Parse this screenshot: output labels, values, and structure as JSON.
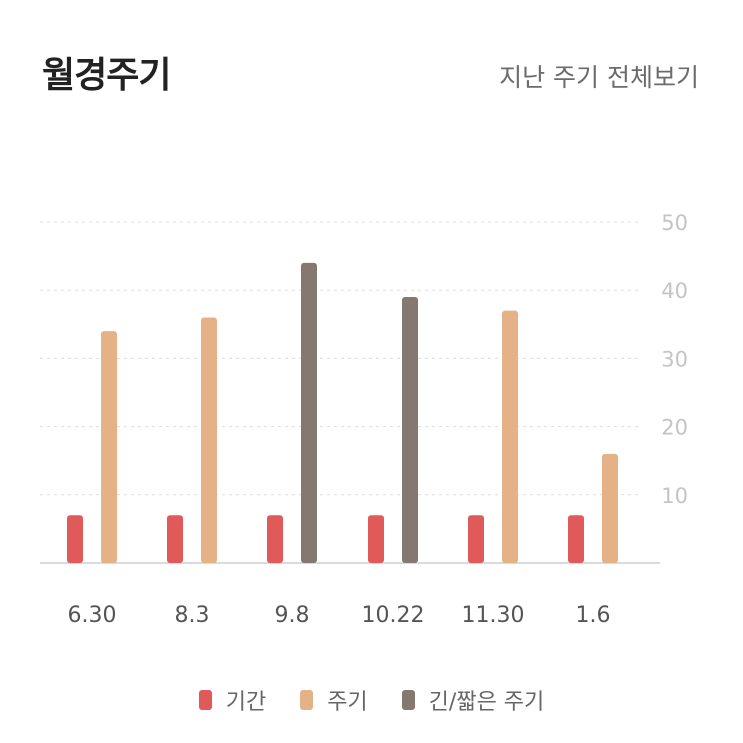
{
  "header": {
    "title": "월경주기",
    "view_all_label": "지난 주기 전체보기"
  },
  "colors": {
    "period": "#e05a5a",
    "cycle": "#e5b287",
    "long_short": "#857870",
    "grid": "#dddddd",
    "axis": "#cfcfcf",
    "tick_label": "#c4c4c4",
    "category_label": "#555555"
  },
  "chart_data": {
    "type": "bar",
    "categories": [
      "6.30",
      "8.3",
      "9.8",
      "10.22",
      "11.30",
      "1.6"
    ],
    "series": [
      {
        "name": "기간",
        "values": [
          7,
          7,
          7,
          7,
          7,
          7
        ]
      },
      {
        "name": "주기",
        "values": [
          34,
          36,
          null,
          null,
          37,
          16
        ]
      },
      {
        "name": "긴/짧은 주기",
        "values": [
          null,
          null,
          44,
          39,
          null,
          null
        ]
      }
    ],
    "yticks": [
      10,
      20,
      30,
      40,
      50
    ],
    "ylim": [
      0,
      50
    ],
    "title": "",
    "xlabel": "",
    "ylabel": "",
    "grid": true,
    "legend_position": "bottom"
  }
}
